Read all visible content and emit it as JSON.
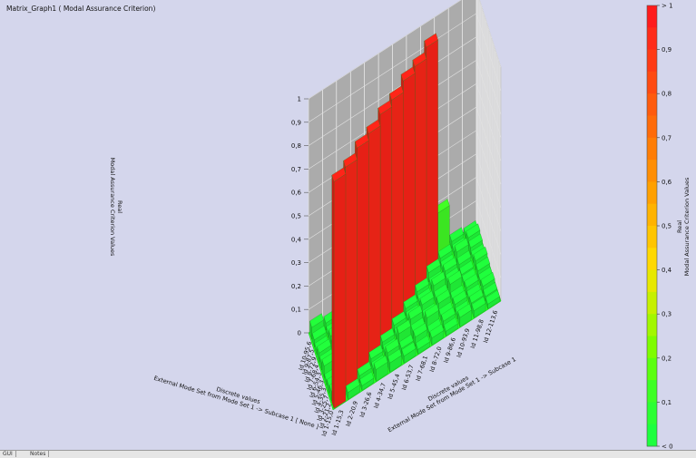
{
  "window": {
    "title": "Matrix_Graph1 ( Modal Assurance Criterion)"
  },
  "status_tabs": [
    "GUI",
    "Notes"
  ],
  "chart_data": {
    "type": "bar3d",
    "title": "Matrix_Graph1 ( Modal Assurance Criterion)",
    "zlabel_lines": [
      "Real",
      "Modal Assurance Criterion Values"
    ],
    "zlim": [
      0,
      1
    ],
    "zticks": [
      "0",
      "0,1",
      "0,2",
      "0,3",
      "0,4",
      "0,5",
      "0,6",
      "0,7",
      "0,8",
      "0,9",
      "1"
    ],
    "x_axis": {
      "label_lines": [
        "Discrete values",
        "External Mode Set from Mode Set 1 -> Subcase 1  [ None ]"
      ],
      "categories": [
        "Id 1-15,0",
        "Id 2-21,2",
        "Id 3-25,7",
        "Id 4-35,3",
        "Id 5-46,3",
        "Id 6-54,3",
        "Id 7-68,4",
        "Id 8-72,9",
        "Id 9-87,5",
        "Id 10-95,6"
      ]
    },
    "y_axis": {
      "label_lines": [
        "Discrete values",
        "External Mode Set from Mode Set 1 -> Subcase 1"
      ],
      "categories": [
        "Id 1-15,3",
        "Id 2-20,9",
        "Id 3-26,6",
        "Id 4-34,7",
        "Id 5-45,4",
        "Id 6-53,7",
        "Id 7-68,1",
        "Id 8-72,0",
        "Id 9-86,6",
        "Id 10-93,9",
        "Id 11-98,8",
        "Id 12-113,6"
      ]
    },
    "values": [
      [
        0.97,
        0.03,
        0.02,
        0.05,
        0.04,
        0.03,
        0.02,
        0.03,
        0.02,
        0.04,
        0.03,
        0.02
      ],
      [
        0.04,
        0.96,
        0.03,
        0.02,
        0.05,
        0.03,
        0.04,
        0.02,
        0.03,
        0.02,
        0.03,
        0.02
      ],
      [
        0.03,
        0.02,
        0.97,
        0.03,
        0.02,
        0.06,
        0.03,
        0.05,
        0.02,
        0.03,
        0.02,
        0.03
      ],
      [
        0.02,
        0.03,
        0.04,
        0.96,
        0.03,
        0.02,
        0.05,
        0.02,
        0.04,
        0.02,
        0.03,
        0.02
      ],
      [
        0.05,
        0.04,
        0.02,
        0.03,
        0.97,
        0.03,
        0.02,
        0.04,
        0.03,
        0.05,
        0.02,
        0.03
      ],
      [
        0.03,
        0.02,
        0.05,
        0.02,
        0.04,
        0.96,
        0.03,
        0.02,
        0.05,
        0.03,
        0.02,
        0.04
      ],
      [
        0.04,
        0.03,
        0.02,
        0.05,
        0.03,
        0.02,
        0.97,
        0.03,
        0.02,
        0.04,
        0.03,
        0.02
      ],
      [
        0.02,
        0.04,
        0.03,
        0.02,
        0.05,
        0.03,
        0.02,
        0.96,
        0.04,
        0.02,
        0.05,
        0.03
      ],
      [
        0.03,
        0.02,
        0.04,
        0.03,
        0.02,
        0.05,
        0.03,
        0.02,
        0.97,
        0.03,
        0.02,
        0.04
      ],
      [
        0.05,
        0.03,
        0.02,
        0.04,
        0.03,
        0.02,
        0.04,
        0.03,
        0.02,
        0.19,
        0.03,
        0.02
      ]
    ],
    "colorbar": {
      "label_lines": [
        "Real",
        "Modal Assurance Criterion Values"
      ],
      "tick_labels": [
        "> 1",
        "0,9",
        "0,8",
        "0,7",
        "0,6",
        "0,5",
        "0,4",
        "0,3",
        "0,2",
        "0,1",
        "< 0"
      ],
      "colors_top_to_bottom": [
        "#ff1b1b",
        "#ff2b18",
        "#ff3a14",
        "#ff4a10",
        "#ff5b0c",
        "#ff6b08",
        "#ff7d05",
        "#ff8e03",
        "#ffa000",
        "#ffb300",
        "#ffc500",
        "#ffd800",
        "#e7e800",
        "#c6f000",
        "#a2f700",
        "#7efc00",
        "#5cff0f",
        "#3dff24",
        "#2bff33",
        "#1dff3f"
      ]
    },
    "grid": true
  }
}
